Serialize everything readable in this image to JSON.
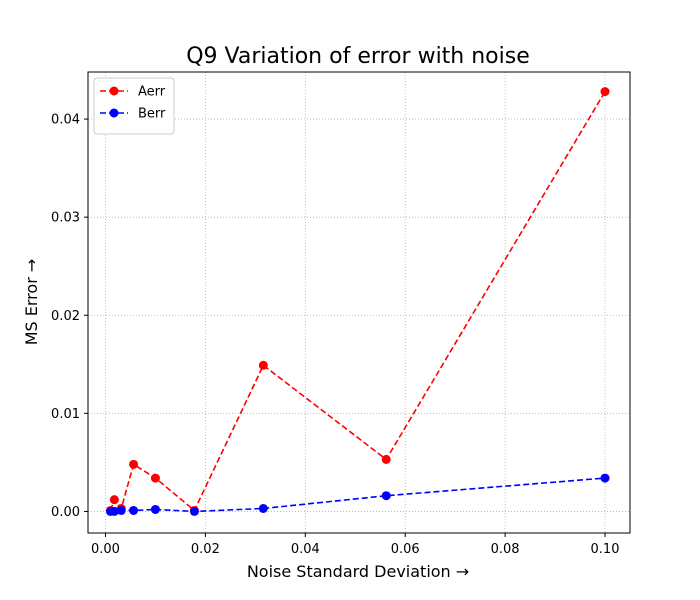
{
  "chart_data": {
    "type": "line",
    "title": "Q9 Variation of error with noise",
    "xlabel": "Noise Standard Deviation →",
    "ylabel": "MS Error →",
    "xlim": [
      -0.0035,
      0.105
    ],
    "ylim": [
      -0.0022,
      0.0448
    ],
    "xticks": [
      0.0,
      0.02,
      0.04,
      0.06,
      0.08,
      0.1
    ],
    "xtick_labels": [
      "0.00",
      "0.02",
      "0.04",
      "0.06",
      "0.08",
      "0.10"
    ],
    "yticks": [
      0.0,
      0.01,
      0.02,
      0.03,
      0.04
    ],
    "ytick_labels": [
      "0.00",
      "0.01",
      "0.02",
      "0.03",
      "0.04"
    ],
    "grid": true,
    "legend_position": "upper-left",
    "series": [
      {
        "name": "Aerr",
        "color": "#ff0000",
        "linestyle": "dashed",
        "marker": "circle",
        "x": [
          0.001,
          0.00178,
          0.00316,
          0.00562,
          0.01,
          0.0178,
          0.0316,
          0.0562,
          0.1
        ],
        "y": [
          0.0001,
          0.0012,
          0.0003,
          0.0048,
          0.0034,
          0.0001,
          0.0149,
          0.0053,
          0.0428
        ]
      },
      {
        "name": "Berr",
        "color": "#0000ff",
        "linestyle": "dashed",
        "marker": "circle",
        "x": [
          0.001,
          0.00178,
          0.00316,
          0.00562,
          0.01,
          0.0178,
          0.0316,
          0.0562,
          0.1
        ],
        "y": [
          0.0,
          0.0,
          0.0001,
          0.0001,
          0.0002,
          0.0,
          0.0003,
          0.0016,
          0.0034
        ]
      }
    ]
  }
}
